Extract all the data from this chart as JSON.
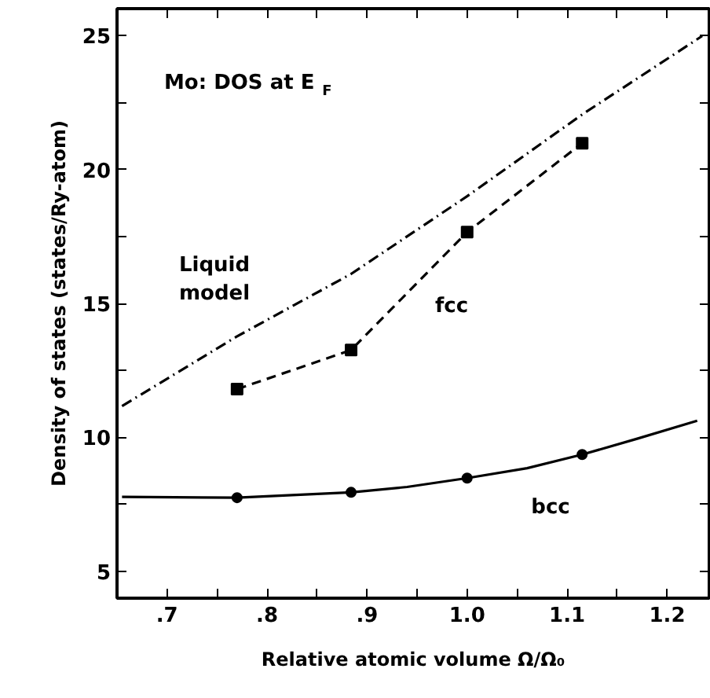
{
  "chart_data": {
    "type": "line",
    "xlabel": "Relative atomic volume Ω/Ω₀",
    "ylabel": "Density of states (states/Ry-atom)",
    "xlim": [
      0.65,
      1.242
    ],
    "ylim": [
      4,
      26
    ],
    "xticks": [
      {
        "value": 0.7,
        "label": ".7"
      },
      {
        "value": 0.75,
        "label": null
      },
      {
        "value": 0.8,
        "label": ".8"
      },
      {
        "value": 0.85,
        "label": null
      },
      {
        "value": 0.9,
        "label": ".9"
      },
      {
        "value": 0.95,
        "label": null
      },
      {
        "value": 1.0,
        "label": "1.0"
      },
      {
        "value": 1.05,
        "label": null
      },
      {
        "value": 1.1,
        "label": "1.1"
      },
      {
        "value": 1.15,
        "label": null
      },
      1.2
    ],
    "yticks": [
      5,
      {
        "value": 7.5,
        "label": null
      },
      10,
      {
        "value": 12.5,
        "label": null
      },
      15,
      {
        "value": 17.5,
        "label": null
      },
      20,
      {
        "value": 22.5,
        "label": null
      },
      25
    ],
    "grid": false,
    "series": [
      {
        "color": "#000000",
        "line_style": "dashdot",
        "marker": "none",
        "x": [
          0.655,
          0.769,
          0.884,
          1.0,
          1.115,
          1.235
        ],
        "values": [
          11.17,
          13.75,
          16.1,
          19.0,
          22.05,
          24.98
        ]
      },
      {
        "color": "#000000",
        "line_style": "dashed",
        "marker": "square",
        "x": [
          0.77,
          0.884,
          1.0,
          1.115
        ],
        "values": [
          11.8,
          13.26,
          17.66,
          20.98
        ]
      },
      {
        "color": "#000000",
        "line_style": "solid",
        "marker": "none",
        "x": [
          0.655,
          0.77,
          0.884,
          0.94,
          1.0,
          1.06,
          1.115,
          1.17,
          1.23
        ],
        "values": [
          7.78,
          7.75,
          7.95,
          8.15,
          8.48,
          8.85,
          9.36,
          9.95,
          10.62
        ]
      },
      {
        "type": "scatter",
        "color": "#000000",
        "marker": "circle",
        "x": [
          0.77,
          0.884,
          1.0,
          1.115
        ],
        "values": [
          7.75,
          7.95,
          8.48,
          9.36
        ]
      }
    ],
    "annotations": [
      "Mo: DOS at E$_{F}$",
      "Liquid model",
      "fcc",
      "bcc"
    ]
  }
}
